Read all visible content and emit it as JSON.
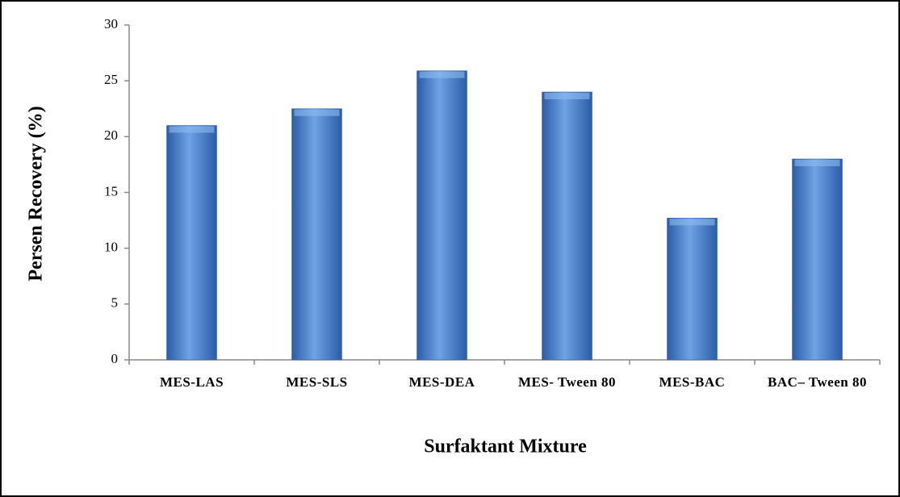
{
  "chart_data": {
    "type": "bar",
    "xlabel": "Surfaktant Mixture",
    "ylabel": "Persen Recovery (%)",
    "categories": [
      "MES-LAS",
      "MES-SLS",
      "MES-DEA",
      "MES- Tween 80",
      "MES-BAC",
      "BAC– Tween 80"
    ],
    "values": [
      21.0,
      22.5,
      25.9,
      24.0,
      12.7,
      18.0
    ],
    "color": "#3b74c4",
    "ylim": [
      0,
      30
    ],
    "yticks": [
      0,
      5,
      10,
      15,
      20,
      25,
      30
    ],
    "grid": false
  }
}
